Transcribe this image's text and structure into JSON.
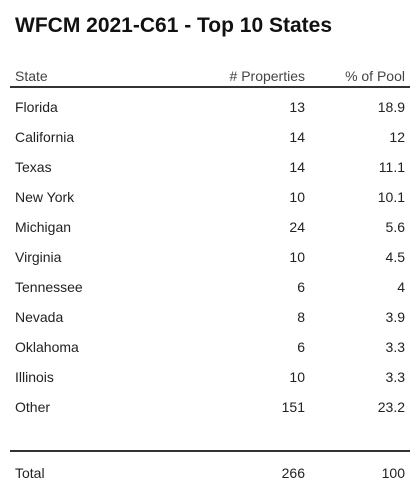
{
  "title": "WFCM 2021-C61 - Top 10 States",
  "table": {
    "headers": {
      "state": "State",
      "properties": "# Properties",
      "pool": "% of Pool"
    },
    "rows": [
      {
        "state": "Florida",
        "properties": "13",
        "pool": "18.9"
      },
      {
        "state": "California",
        "properties": "14",
        "pool": "12"
      },
      {
        "state": "Texas",
        "properties": "14",
        "pool": "11.1"
      },
      {
        "state": "New York",
        "properties": "10",
        "pool": "10.1"
      },
      {
        "state": "Michigan",
        "properties": "24",
        "pool": "5.6"
      },
      {
        "state": "Virginia",
        "properties": "10",
        "pool": "4.5"
      },
      {
        "state": "Tennessee",
        "properties": "6",
        "pool": "4"
      },
      {
        "state": "Nevada",
        "properties": "8",
        "pool": "3.9"
      },
      {
        "state": "Oklahoma",
        "properties": "6",
        "pool": "3.3"
      },
      {
        "state": "Illinois",
        "properties": "10",
        "pool": "3.3"
      },
      {
        "state": "Other",
        "properties": "151",
        "pool": "23.2"
      }
    ],
    "total": {
      "state": "Total",
      "properties": "266",
      "pool": "100"
    }
  }
}
